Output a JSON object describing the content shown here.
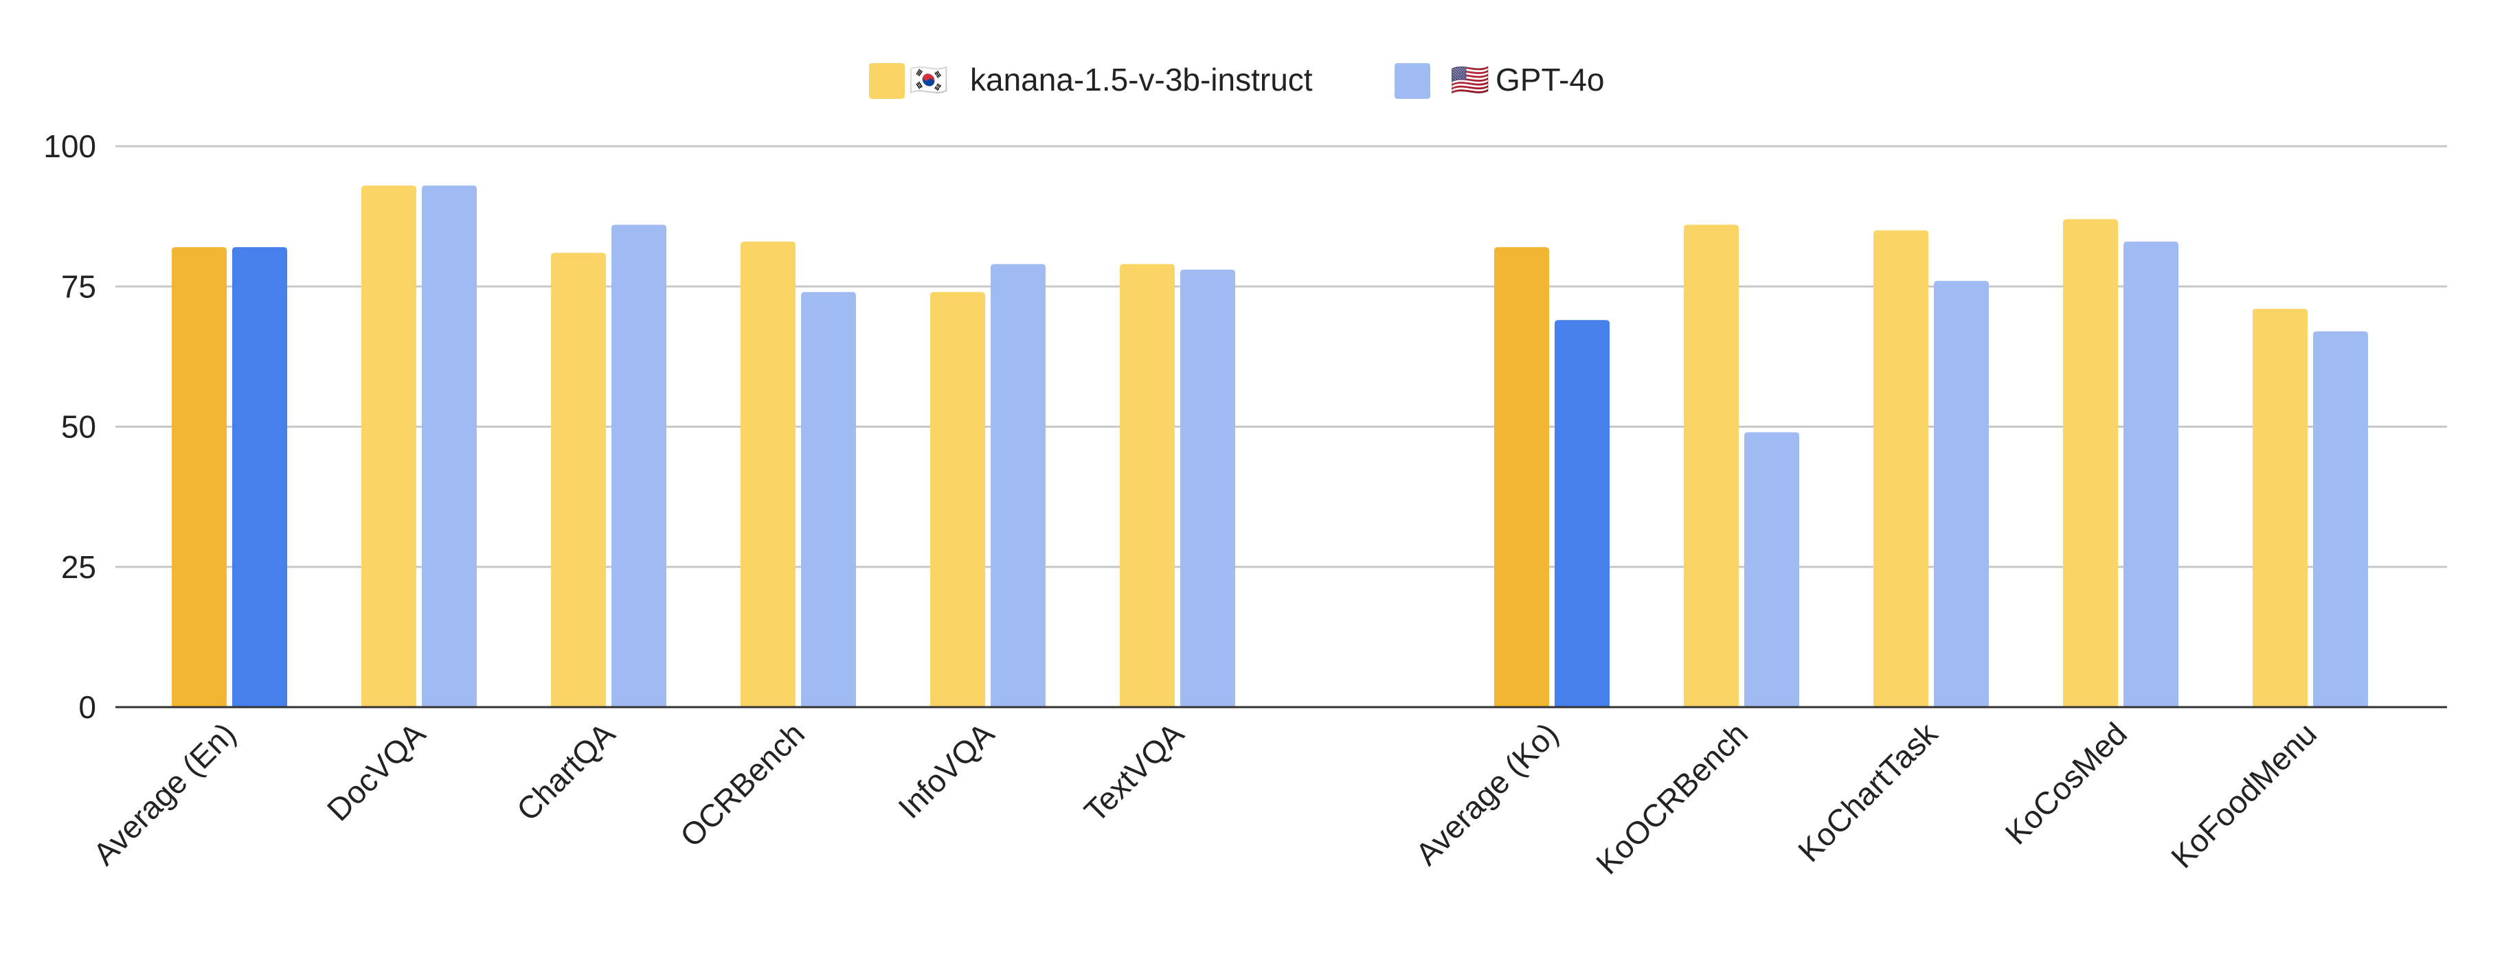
{
  "chart_data": {
    "type": "bar",
    "title": "",
    "xlabel": "",
    "ylabel": "",
    "ylim": [
      0,
      100
    ],
    "yticks": [
      0,
      25,
      50,
      75,
      100
    ],
    "grid": true,
    "legend_position": "top-center",
    "categories": [
      "Average (En)",
      "DocVQA",
      "ChartQA",
      "OCRBench",
      "InfoVQA",
      "TextVQA",
      "Average (Ko)",
      "KoOCRBench",
      "KoChartTask",
      "KoCosMed",
      "KoFoodMenu"
    ],
    "highlighted_categories": [
      "Average (En)",
      "Average (Ko)"
    ],
    "series": [
      {
        "name": "kanana-1.5-v-3b-instruct",
        "flag": "🇰🇷",
        "color": "#FAD566",
        "highlight_color": "#F2B634",
        "values": [
          82,
          93,
          81,
          83,
          74,
          79,
          82,
          86,
          85,
          87,
          71
        ]
      },
      {
        "name": "GPT-4o",
        "flag": "🇺🇸",
        "color": "#A0BBF2",
        "highlight_color": "#4680EC",
        "values": [
          82,
          93,
          86,
          74,
          79,
          78,
          69,
          49,
          76,
          83,
          67
        ]
      }
    ]
  }
}
